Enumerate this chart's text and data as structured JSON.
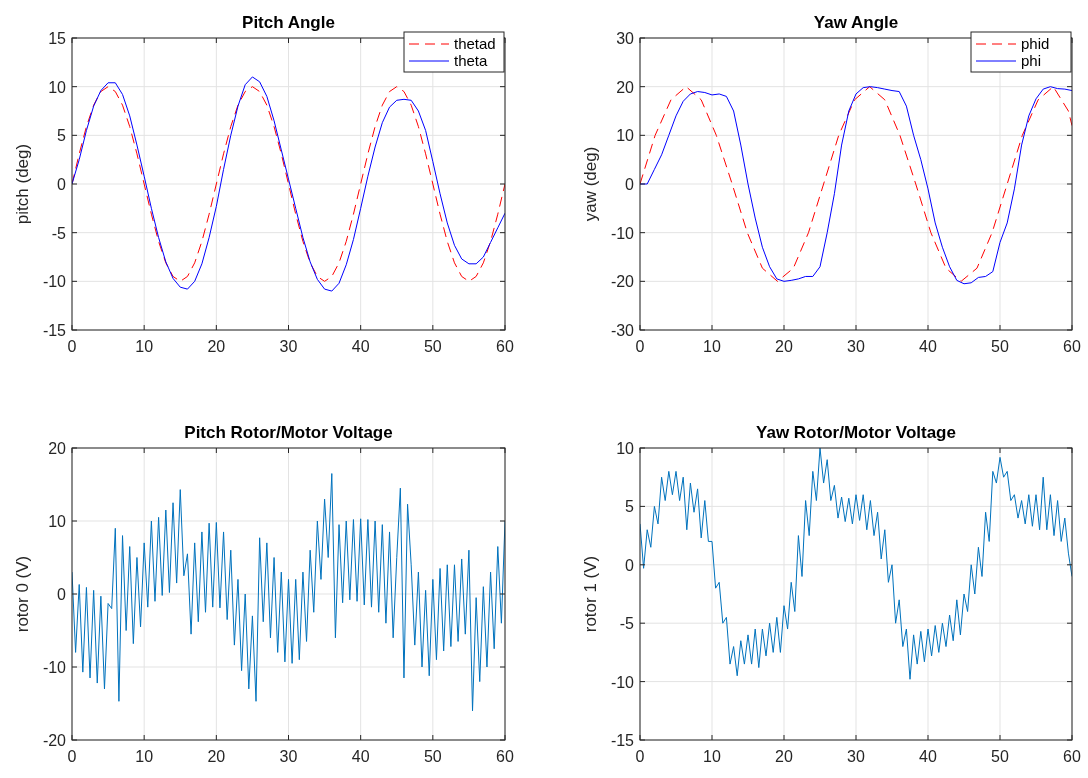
{
  "chart_data": [
    {
      "type": "line",
      "title": "Pitch Angle",
      "ylabel": "pitch (deg)",
      "xlim": [
        0,
        60
      ],
      "xticks": [
        0,
        10,
        20,
        30,
        40,
        50,
        60
      ],
      "ylim": [
        -15,
        15
      ],
      "yticks": [
        -15,
        -10,
        -5,
        0,
        5,
        10,
        15
      ],
      "grid": true,
      "legend": "top right",
      "marker": "none",
      "x": [
        0,
        1,
        2,
        3,
        4,
        5,
        6,
        7,
        8,
        9,
        10,
        11,
        12,
        13,
        14,
        15,
        16,
        17,
        18,
        19,
        20,
        21,
        22,
        23,
        24,
        25,
        26,
        27,
        28,
        29,
        30,
        31,
        32,
        33,
        34,
        35,
        36,
        37,
        38,
        39,
        40,
        41,
        42,
        43,
        44,
        45,
        46,
        47,
        48,
        49,
        50,
        51,
        52,
        53,
        54,
        55,
        56,
        57,
        58,
        59,
        60
      ],
      "series": [
        {
          "name": "thetad",
          "color": "#ff0000",
          "line_style": "dashed",
          "values": [
            0,
            3.1,
            5.9,
            8.1,
            9.5,
            10,
            9.5,
            8.1,
            5.9,
            3.1,
            0,
            -3.1,
            -5.9,
            -8.1,
            -9.5,
            -10,
            -9.5,
            -8.1,
            -5.9,
            -3.1,
            0,
            3.1,
            5.9,
            8.1,
            9.5,
            10,
            9.5,
            8.1,
            5.9,
            3.1,
            0,
            -3.1,
            -5.9,
            -8.1,
            -9.5,
            -10,
            -9.5,
            -8.1,
            -5.9,
            -3.1,
            0,
            3.1,
            5.9,
            8.1,
            9.5,
            10,
            9.5,
            8.1,
            5.9,
            3.1,
            0,
            -3.1,
            -5.9,
            -8.1,
            -9.5,
            -10,
            -9.5,
            -8.1,
            -5.9,
            -3.1,
            0
          ]
        },
        {
          "name": "theta",
          "color": "#0000ff",
          "line_style": "solid",
          "values": [
            0,
            2.5,
            5.5,
            8,
            9.6,
            10.4,
            10.4,
            9.2,
            7,
            4,
            0.8,
            -2.5,
            -5.5,
            -8,
            -9.7,
            -10.6,
            -10.8,
            -10,
            -8.2,
            -5.5,
            -2.3,
            1.5,
            5,
            8,
            10.2,
            11,
            10.5,
            9,
            6.5,
            3.5,
            0.5,
            -2.5,
            -5.5,
            -8,
            -9.8,
            -10.8,
            -11,
            -10.2,
            -8.3,
            -5.7,
            -2.5,
            0.8,
            3.8,
            6.3,
            7.9,
            8.6,
            8.7,
            8.6,
            7.5,
            5.5,
            2.3,
            -1,
            -4,
            -6.3,
            -7.7,
            -8.2,
            -8.2,
            -7.5,
            -6,
            -4.5,
            -3
          ]
        }
      ]
    },
    {
      "type": "line",
      "title": "Yaw Angle",
      "ylabel": "yaw (deg)",
      "xlim": [
        0,
        60
      ],
      "xticks": [
        0,
        10,
        20,
        30,
        40,
        50,
        60
      ],
      "ylim": [
        -30,
        30
      ],
      "yticks": [
        -30,
        -20,
        -10,
        0,
        10,
        20,
        30
      ],
      "grid": true,
      "legend": "top right",
      "marker": "none",
      "x": [
        0,
        1,
        2,
        3,
        4,
        5,
        6,
        7,
        8,
        9,
        10,
        11,
        12,
        13,
        14,
        15,
        16,
        17,
        18,
        19,
        20,
        21,
        22,
        23,
        24,
        25,
        26,
        27,
        28,
        29,
        30,
        31,
        32,
        33,
        34,
        35,
        36,
        37,
        38,
        39,
        40,
        41,
        42,
        43,
        44,
        45,
        46,
        47,
        48,
        49,
        50,
        51,
        52,
        53,
        54,
        55,
        56,
        57,
        58,
        59,
        60
      ],
      "series": [
        {
          "name": "phid",
          "color": "#ff0000",
          "line_style": "dashed",
          "x": [
            0,
            2.1,
            4.3,
            6.4,
            8.5,
            10.6,
            12.8,
            14.9,
            17,
            19.1,
            21.3,
            23.4,
            25.5,
            27.6,
            29.8,
            31.9,
            34,
            36.1,
            38.3,
            40.4,
            42.5,
            44.6,
            46.8,
            48.9,
            51,
            53.1,
            55.3,
            57.4,
            59.5,
            60
          ],
          "values": [
            0,
            10,
            17.3,
            20,
            17.3,
            10,
            0,
            -10,
            -17.3,
            -20,
            -17.3,
            -10,
            0,
            10,
            17.3,
            20,
            17.3,
            10,
            0,
            -10,
            -17.3,
            -20,
            -17.3,
            -10,
            0,
            10,
            17.3,
            20,
            15,
            12
          ]
        },
        {
          "name": "phi",
          "color": "#0000ff",
          "line_style": "solid",
          "values": [
            0,
            0,
            3,
            6,
            10,
            14,
            17,
            18.5,
            19,
            18.8,
            18.3,
            18.5,
            18,
            15,
            8,
            0,
            -7,
            -13,
            -17,
            -19.5,
            -20,
            -19.8,
            -19.5,
            -19,
            -19,
            -17,
            -10,
            -2,
            8,
            15,
            18.5,
            19.8,
            20,
            19.8,
            19.5,
            19.2,
            19,
            16,
            10,
            5,
            -1,
            -8,
            -13,
            -17,
            -19.8,
            -20.5,
            -20.3,
            -19.2,
            -19,
            -18,
            -12,
            -8,
            -1,
            8,
            14,
            17.5,
            19.5,
            20,
            19.6,
            19.5,
            19.2
          ]
        }
      ]
    },
    {
      "type": "line",
      "title": "Pitch Rotor/Motor Voltage",
      "ylabel": "rotor 0 (V)",
      "xlim": [
        0,
        60
      ],
      "xticks": [
        0,
        10,
        20,
        30,
        40,
        50,
        60
      ],
      "ylim": [
        -20,
        20
      ],
      "yticks": [
        -20,
        -10,
        0,
        10,
        20
      ],
      "grid": true,
      "marker": "none",
      "x": [
        0,
        0.5,
        1,
        1.5,
        2,
        2.5,
        3,
        3.5,
        4,
        4.5,
        5,
        5.5,
        6,
        6.5,
        7,
        7.5,
        8,
        8.5,
        9,
        9.5,
        10,
        10.5,
        11,
        11.5,
        12,
        12.5,
        13,
        13.5,
        14,
        14.5,
        15,
        15.5,
        16,
        16.5,
        17,
        17.5,
        18,
        18.5,
        19,
        19.5,
        20,
        20.5,
        21,
        21.5,
        22,
        22.5,
        23,
        23.5,
        24,
        24.5,
        25,
        25.5,
        26,
        26.5,
        27,
        27.5,
        28,
        28.5,
        29,
        29.5,
        30,
        30.5,
        31,
        31.5,
        32,
        32.5,
        33,
        33.5,
        34,
        34.5,
        35,
        35.5,
        36,
        36.5,
        37,
        37.5,
        38,
        38.5,
        39,
        39.5,
        40,
        40.5,
        41,
        41.5,
        42,
        42.5,
        43,
        43.5,
        44,
        44.5,
        45,
        45.5,
        46,
        46.5,
        47,
        47.5,
        48,
        48.5,
        49,
        49.5,
        50,
        50.5,
        51,
        51.5,
        52,
        52.5,
        53,
        53.5,
        54,
        54.5,
        55,
        55.5,
        56,
        56.5,
        57,
        57.5,
        58,
        58.5,
        59,
        59.5,
        60
      ],
      "series": [
        {
          "color": "#0072bd",
          "line_style": "solid",
          "values": [
            3,
            -8,
            1.3,
            -10.7,
            0.9,
            -11.5,
            0.5,
            -12.2,
            -0.3,
            -13,
            -1.3,
            -2,
            9,
            -14.7,
            8,
            -5,
            6.5,
            -6.8,
            5,
            -4.5,
            7,
            -1.8,
            10,
            -1,
            10.5,
            -0.2,
            11.5,
            0.2,
            12.5,
            1.5,
            14.3,
            2.5,
            5.5,
            -5.5,
            7,
            -3.8,
            8.5,
            -2.5,
            9.7,
            -1.8,
            9.8,
            -1.9,
            8.5,
            -3.5,
            6,
            -7,
            2,
            -10.5,
            0,
            -13,
            -3,
            -14.7,
            7.7,
            -3.8,
            7,
            -6,
            5,
            -8,
            3,
            -9.3,
            2,
            -9.5,
            2,
            -9,
            3,
            -6.5,
            6,
            -2.5,
            10,
            2,
            13,
            5,
            16.5,
            -6,
            9.5,
            -1.2,
            10,
            -0.8,
            10.2,
            -1,
            10.3,
            -1.5,
            10.2,
            -1.8,
            10,
            -2.5,
            9.5,
            -4,
            8.5,
            -6,
            5,
            14.5,
            -11.5,
            12.3,
            4,
            -7,
            3,
            -10,
            0.5,
            -11.2,
            2,
            -9,
            3.5,
            -7.8,
            4,
            -7.2,
            4,
            -6.5,
            4.8,
            -5.5,
            6,
            -16,
            -0.5,
            -12,
            1,
            -10,
            3,
            -7.5,
            6.5,
            -4,
            10
          ]
        }
      ]
    },
    {
      "type": "line",
      "title": "Yaw Rotor/Motor Voltage",
      "ylabel": "rotor 1 (V)",
      "xlim": [
        0,
        60
      ],
      "xticks": [
        0,
        10,
        20,
        30,
        40,
        50,
        60
      ],
      "ylim": [
        -15,
        10
      ],
      "yticks": [
        -15,
        -10,
        -5,
        0,
        5,
        10
      ],
      "grid": true,
      "marker": "none",
      "x": [
        0,
        0.5,
        1,
        1.5,
        2,
        2.5,
        3,
        3.5,
        4,
        4.5,
        5,
        5.5,
        6,
        6.5,
        7,
        7.5,
        8,
        8.5,
        9,
        9.5,
        10,
        10.5,
        11,
        11.5,
        12,
        12.5,
        13,
        13.5,
        14,
        14.5,
        15,
        15.5,
        16,
        16.5,
        17,
        17.5,
        18,
        18.5,
        19,
        19.5,
        20,
        20.5,
        21,
        21.5,
        22,
        22.5,
        23,
        23.5,
        24,
        24.5,
        25,
        25.5,
        26,
        26.5,
        27,
        27.5,
        28,
        28.5,
        29,
        29.5,
        30,
        30.5,
        31,
        31.5,
        32,
        32.5,
        33,
        33.5,
        34,
        34.5,
        35,
        35.5,
        36,
        36.5,
        37,
        37.5,
        38,
        38.5,
        39,
        39.5,
        40,
        40.5,
        41,
        41.5,
        42,
        42.5,
        43,
        43.5,
        44,
        44.5,
        45,
        45.5,
        46,
        46.5,
        47,
        47.5,
        48,
        48.5,
        49,
        49.5,
        50,
        50.5,
        51,
        51.5,
        52,
        52.5,
        53,
        53.5,
        54,
        54.5,
        55,
        55.5,
        56,
        56.5,
        57,
        57.5,
        58,
        58.5,
        59,
        59.5,
        60
      ],
      "series": [
        {
          "color": "#0072bd",
          "line_style": "solid",
          "values": [
            3.5,
            -0.3,
            3,
            1.5,
            5,
            3.5,
            7.5,
            5.5,
            8,
            6,
            8,
            5.5,
            7.5,
            3,
            7,
            4.5,
            6.5,
            2.3,
            5.5,
            2,
            2,
            -2,
            -1.5,
            -5,
            -4.5,
            -8.5,
            -7,
            -9.5,
            -6.5,
            -8.5,
            -6,
            -8.5,
            -5.5,
            -8.8,
            -5.5,
            -7.8,
            -5,
            -7.5,
            -4.5,
            -7.5,
            -3.5,
            -5.5,
            -1.5,
            -4,
            2.5,
            -1,
            5.5,
            2.5,
            8,
            5.5,
            10,
            7,
            9,
            5.5,
            6.8,
            4,
            5.8,
            3.7,
            5.7,
            3.5,
            6,
            3.8,
            6,
            3,
            5.5,
            2.5,
            4.5,
            0.5,
            3,
            -1.5,
            0,
            -5,
            -3,
            -7,
            -5.5,
            -9.8,
            -6,
            -8.5,
            -5.7,
            -8.3,
            -5.5,
            -7.8,
            -5.2,
            -7.5,
            -5,
            -7,
            -4.3,
            -6.5,
            -3,
            -6,
            -2.5,
            -4,
            0,
            -2.5,
            1.5,
            -1,
            4.5,
            2,
            8,
            7,
            9.2,
            7.5,
            8,
            5.5,
            6,
            4,
            5.5,
            3.5,
            6,
            3.3,
            6,
            3,
            7.5,
            3,
            6,
            2.5,
            5.5,
            2,
            4,
            1,
            -1
          ]
        }
      ]
    }
  ]
}
